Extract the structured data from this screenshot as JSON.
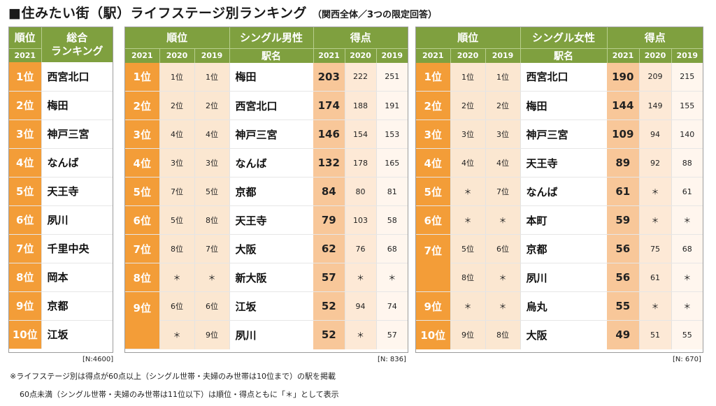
{
  "title": {
    "main": "■住みたい街（駅）ライフステージ別ランキング",
    "sub": "（関西全体／3つの限定回答）"
  },
  "overall": {
    "header_rank": "順位",
    "header_title": "総合\nランキング",
    "header_year": "2021",
    "n_label": "[N:4600]",
    "rows": [
      {
        "rank": "1位",
        "station": "西宮北口"
      },
      {
        "rank": "2位",
        "station": "梅田"
      },
      {
        "rank": "3位",
        "station": "神戸三宮"
      },
      {
        "rank": "4位",
        "station": "なんば"
      },
      {
        "rank": "5位",
        "station": "天王寺"
      },
      {
        "rank": "6位",
        "station": "夙川"
      },
      {
        "rank": "7位",
        "station": "千里中央"
      },
      {
        "rank": "8位",
        "station": "岡本"
      },
      {
        "rank": "9位",
        "station": "京都"
      },
      {
        "rank": "10位",
        "station": "江坂"
      }
    ]
  },
  "single_male": {
    "header_rank": "順位",
    "header_group": "シングル男性",
    "header_station": "駅名",
    "header_score": "得点",
    "years": [
      "2021",
      "2020",
      "2019"
    ],
    "n_label": "[N:  836]",
    "rows": [
      {
        "r2020": "1位",
        "r2019": "1位",
        "station": "梅田",
        "s2021": "203",
        "s2020": "222",
        "s2019": "251"
      },
      {
        "r2020": "2位",
        "r2019": "2位",
        "station": "西宮北口",
        "s2021": "174",
        "s2020": "188",
        "s2019": "191"
      },
      {
        "r2020": "4位",
        "r2019": "4位",
        "station": "神戸三宮",
        "s2021": "146",
        "s2020": "154",
        "s2019": "153"
      },
      {
        "r2020": "3位",
        "r2019": "3位",
        "station": "なんば",
        "s2021": "132",
        "s2020": "178",
        "s2019": "165"
      },
      {
        "r2020": "7位",
        "r2019": "5位",
        "station": "京都",
        "s2021": "84",
        "s2020": "80",
        "s2019": "81"
      },
      {
        "r2020": "5位",
        "r2019": "8位",
        "station": "天王寺",
        "s2021": "79",
        "s2020": "103",
        "s2019": "58"
      },
      {
        "r2020": "8位",
        "r2019": "7位",
        "station": "大阪",
        "s2021": "62",
        "s2020": "76",
        "s2019": "68"
      },
      {
        "r2020": "＊",
        "r2019": "＊",
        "station": "新大阪",
        "s2021": "57",
        "s2020": "＊",
        "s2019": "＊"
      },
      {
        "r2020": "6位",
        "r2019": "6位",
        "station": "江坂",
        "s2021": "52",
        "s2020": "94",
        "s2019": "74"
      },
      {
        "r2020": "＊",
        "r2019": "9位",
        "station": "夙川",
        "s2021": "52",
        "s2020": "＊",
        "s2019": "57"
      }
    ],
    "rank2021": [
      "1位",
      "2位",
      "3位",
      "4位",
      "5位",
      "6位",
      "7位",
      "8位",
      "9位"
    ]
  },
  "single_female": {
    "header_rank": "順位",
    "header_group": "シングル女性",
    "header_station": "駅名",
    "header_score": "得点",
    "years": [
      "2021",
      "2020",
      "2019"
    ],
    "n_label": "[N:  670]",
    "rows": [
      {
        "r2020": "1位",
        "r2019": "1位",
        "station": "西宮北口",
        "s2021": "190",
        "s2020": "209",
        "s2019": "215"
      },
      {
        "r2020": "2位",
        "r2019": "2位",
        "station": "梅田",
        "s2021": "144",
        "s2020": "149",
        "s2019": "155"
      },
      {
        "r2020": "3位",
        "r2019": "3位",
        "station": "神戸三宮",
        "s2021": "109",
        "s2020": "94",
        "s2019": "140"
      },
      {
        "r2020": "4位",
        "r2019": "4位",
        "station": "天王寺",
        "s2021": "89",
        "s2020": "92",
        "s2019": "88"
      },
      {
        "r2020": "＊",
        "r2019": "7位",
        "station": "なんば",
        "s2021": "61",
        "s2020": "＊",
        "s2019": "61"
      },
      {
        "r2020": "＊",
        "r2019": "＊",
        "station": "本町",
        "s2021": "59",
        "s2020": "＊",
        "s2019": "＊"
      },
      {
        "r2020": "5位",
        "r2019": "6位",
        "station": "京都",
        "s2021": "56",
        "s2020": "75",
        "s2019": "68"
      },
      {
        "r2020": "8位",
        "r2019": "＊",
        "station": "夙川",
        "s2021": "56",
        "s2020": "61",
        "s2019": "＊"
      },
      {
        "r2020": "＊",
        "r2019": "＊",
        "station": "烏丸",
        "s2021": "55",
        "s2020": "＊",
        "s2019": "＊"
      },
      {
        "r2020": "9位",
        "r2019": "8位",
        "station": "大阪",
        "s2021": "49",
        "s2020": "51",
        "s2019": "55"
      }
    ],
    "rank2021": [
      "1位",
      "2位",
      "3位",
      "4位",
      "5位",
      "6位",
      "7位",
      "9位",
      "10位"
    ]
  },
  "notes": {
    "line1": "※ライフステージ別は得点が60点以上（シングル世帯・夫婦のみ世帯は10位まで）の駅を掲載",
    "line2": "60点未満（シングル世帯・夫婦のみ世帯は11位以下）は順位・得点ともに「＊」として表示"
  }
}
